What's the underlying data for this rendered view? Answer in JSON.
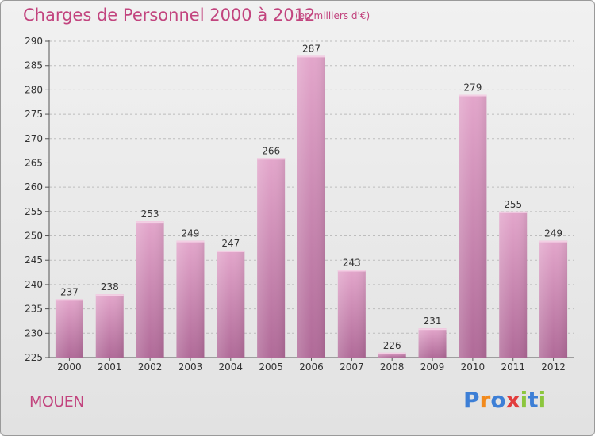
{
  "title": "Charges de Personnel 2000 à 2012",
  "unit_note": "(en milliers d'€)",
  "commune": "MOUEN",
  "logo": {
    "text": "Proxiti",
    "letters": [
      {
        "ch": "P",
        "color": "#3d7fd6"
      },
      {
        "ch": "r",
        "color": "#f28a1c"
      },
      {
        "ch": "o",
        "color": "#3d7fd6"
      },
      {
        "ch": "x",
        "color": "#e23d3d"
      },
      {
        "ch": "i",
        "color": "#8cc63e"
      },
      {
        "ch": "t",
        "color": "#3d7fd6"
      },
      {
        "ch": "i",
        "color": "#8cc63e"
      }
    ]
  },
  "colors": {
    "accent": "#c2447e",
    "bar_top": "#e3a6cb",
    "bar_bottom": "#b06a98"
  },
  "chart_data": {
    "type": "bar",
    "title": "Charges de Personnel 2000 à 2012",
    "subtitle": "(en milliers d'€)",
    "xlabel": "",
    "ylabel": "",
    "categories": [
      "2000",
      "2001",
      "2002",
      "2003",
      "2004",
      "2005",
      "2006",
      "2007",
      "2008",
      "2009",
      "2010",
      "2011",
      "2012"
    ],
    "values": [
      237,
      238,
      253,
      249,
      247,
      266,
      287,
      243,
      226,
      231,
      279,
      255,
      249
    ],
    "ylim": [
      225,
      290
    ],
    "yticks": [
      225,
      230,
      235,
      240,
      245,
      250,
      255,
      260,
      265,
      270,
      275,
      280,
      285,
      290
    ],
    "grid": "horizontal",
    "legend": "none"
  }
}
